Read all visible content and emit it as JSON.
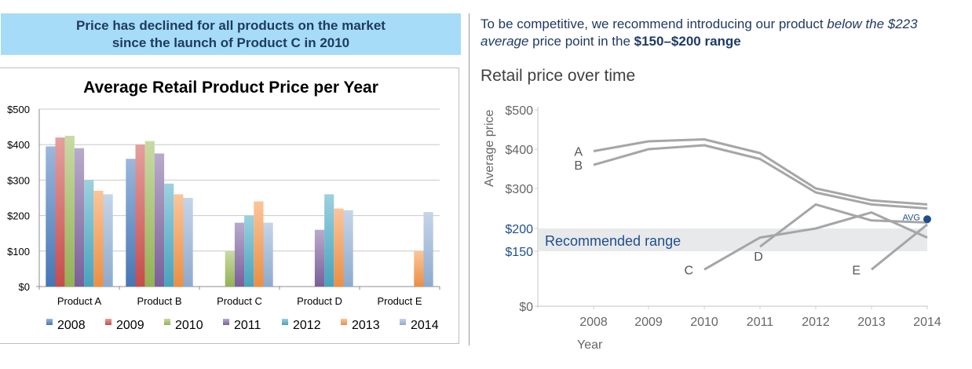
{
  "left": {
    "banner_line1": "Price has declined for all products on the market",
    "banner_line2": "since the launch of Product C in 2010"
  },
  "right": {
    "rec_part1": "To be competitive, we recommend introducing our product ",
    "rec_italic": "below the $223 average",
    "rec_part2": " price point in the ",
    "rec_bold": "$150–$200 range",
    "chart_title": "Retail price over time"
  },
  "chart_data": [
    {
      "type": "bar",
      "title": "Average Retail Product Price per Year",
      "xlabel": "",
      "ylabel": "",
      "ylim": [
        0,
        500
      ],
      "yticks": [
        "$0",
        "$100",
        "$200",
        "$300",
        "$400",
        "$500"
      ],
      "ytick_values": [
        0,
        100,
        200,
        300,
        400,
        500
      ],
      "grid": true,
      "legend": "bottom",
      "categories": [
        "Product A",
        "Product B",
        "Product C",
        "Product D",
        "Product E"
      ],
      "series": [
        {
          "name": "2008",
          "color": "#4a7cc0",
          "values": [
            395,
            360,
            null,
            null,
            null
          ]
        },
        {
          "name": "2009",
          "color": "#d0504e",
          "values": [
            420,
            400,
            null,
            null,
            null
          ]
        },
        {
          "name": "2010",
          "color": "#9bbb59",
          "values": [
            425,
            410,
            100,
            null,
            null
          ]
        },
        {
          "name": "2011",
          "color": "#8064a2",
          "values": [
            390,
            375,
            180,
            160,
            null
          ]
        },
        {
          "name": "2012",
          "color": "#4bacc6",
          "values": [
            300,
            290,
            200,
            260,
            null
          ]
        },
        {
          "name": "2013",
          "color": "#f79646",
          "values": [
            270,
            260,
            240,
            220,
            100
          ]
        },
        {
          "name": "2014",
          "color": "#95b3d7",
          "values": [
            260,
            250,
            180,
            215,
            210
          ]
        }
      ]
    },
    {
      "type": "line",
      "title": "Retail price over time",
      "xlabel": "Year",
      "ylabel": "Average price",
      "x": [
        2008,
        2009,
        2010,
        2011,
        2012,
        2013,
        2014
      ],
      "yticks": [
        "$0",
        "$150",
        "$200",
        "$300",
        "$400",
        "$500"
      ],
      "ytick_values": [
        0,
        150,
        200,
        300,
        400,
        500
      ],
      "highlight_ticks": [
        "$150",
        "$200"
      ],
      "ylim": [
        0,
        500
      ],
      "grid": false,
      "line_color": "#a6a6a6",
      "accent_color": "#1f4e8c",
      "band": {
        "label": "Recommended range",
        "from": 150,
        "to": 200,
        "color": "#e8e9eb"
      },
      "avg": {
        "label": "AVG",
        "x": 2014,
        "value": 223
      },
      "series": [
        {
          "name": "A",
          "values": [
            395,
            420,
            425,
            390,
            300,
            270,
            260
          ]
        },
        {
          "name": "B",
          "values": [
            360,
            400,
            410,
            375,
            290,
            260,
            250
          ]
        },
        {
          "name": "C",
          "values": [
            null,
            null,
            100,
            180,
            200,
            240,
            180
          ]
        },
        {
          "name": "D",
          "values": [
            null,
            null,
            null,
            160,
            260,
            220,
            215
          ]
        },
        {
          "name": "E",
          "values": [
            null,
            null,
            null,
            null,
            null,
            100,
            210
          ]
        }
      ]
    }
  ]
}
